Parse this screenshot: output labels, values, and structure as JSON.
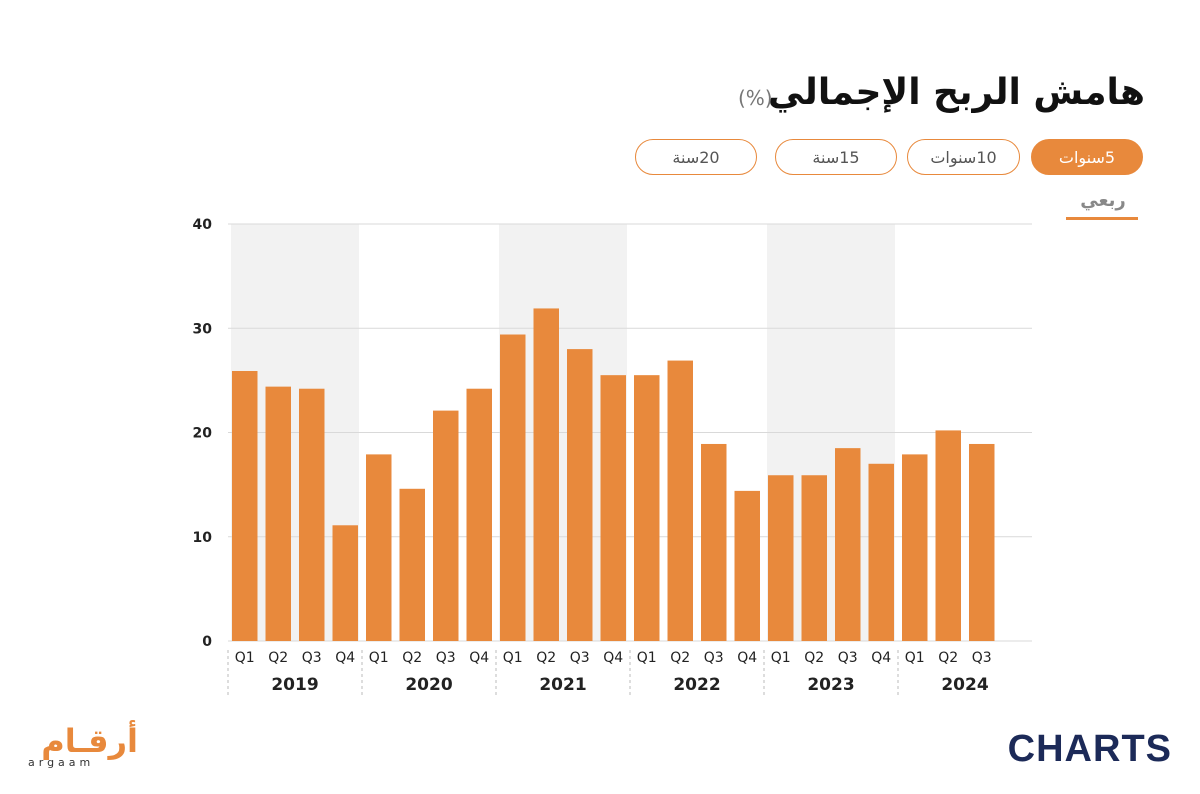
{
  "header": {
    "title": "هامش الربح الإجمالي",
    "unit": "(%)"
  },
  "range_buttons": [
    {
      "label": "5سنوات",
      "active": true
    },
    {
      "label": "10سنوات",
      "active": false
    },
    {
      "label": "15سنة",
      "active": false
    },
    {
      "label": "20سنة",
      "active": false
    }
  ],
  "period_tab": "ربعي",
  "colors": {
    "bar": "#e8893c",
    "band": "#f2f2f2",
    "grid": "#d9d9d9",
    "accent": "#e8893c"
  },
  "logos": {
    "left_ar": "أرقـام",
    "left_en": "argaam",
    "right": "CHARTS"
  },
  "chart_data": {
    "type": "bar",
    "title": "هامش الربح الإجمالي",
    "ylim": [
      0,
      40
    ],
    "yticks": [
      0,
      10,
      20,
      30,
      40
    ],
    "grid": true,
    "legend": "none",
    "groups": [
      {
        "year": "2019",
        "quarters": [
          "Q1",
          "Q2",
          "Q3",
          "Q4"
        ],
        "values": [
          25.9,
          24.4,
          24.2,
          11.1
        ],
        "shaded": true
      },
      {
        "year": "2020",
        "quarters": [
          "Q1",
          "Q2",
          "Q3",
          "Q4"
        ],
        "values": [
          17.9,
          14.6,
          22.1,
          24.2
        ],
        "shaded": false
      },
      {
        "year": "2021",
        "quarters": [
          "Q1",
          "Q2",
          "Q3",
          "Q4"
        ],
        "values": [
          29.4,
          31.9,
          28.0,
          25.5
        ],
        "shaded": true
      },
      {
        "year": "2022",
        "quarters": [
          "Q1",
          "Q2",
          "Q3",
          "Q4"
        ],
        "values": [
          25.5,
          26.9,
          18.9,
          14.4
        ],
        "shaded": false
      },
      {
        "year": "2023",
        "quarters": [
          "Q1",
          "Q2",
          "Q3",
          "Q4"
        ],
        "values": [
          15.9,
          15.9,
          18.5,
          17.0
        ],
        "shaded": true
      },
      {
        "year": "2024",
        "quarters": [
          "Q1",
          "Q2",
          "Q3"
        ],
        "values": [
          17.9,
          20.2,
          18.9
        ],
        "shaded": false
      }
    ]
  }
}
